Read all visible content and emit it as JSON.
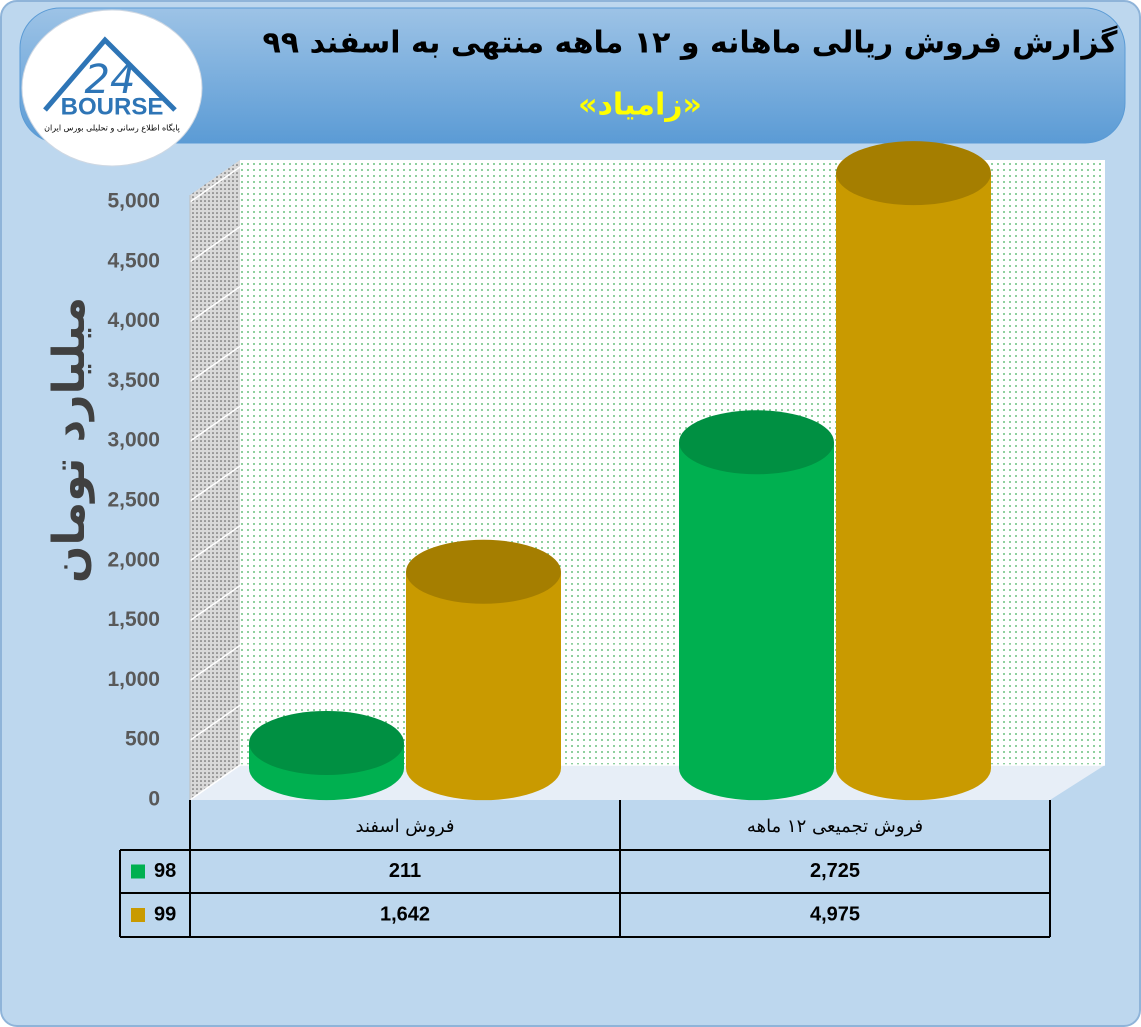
{
  "logo": {
    "number": "24",
    "name": "BOURSE",
    "tagline": "پایگاه اطلاع رسانی و تحلیلی بورس ایران"
  },
  "chart_data": {
    "type": "bar",
    "title": "گزارش فروش ریالی ماهانه و ۱۲ ماهه منتهی به اسفند ۹۹",
    "subtitle": "«زامیاد»",
    "y_label": "میلیارد تومان",
    "categories": [
      "فروش اسفند",
      "فروش تجمیعی ۱۲ ماهه"
    ],
    "series": [
      {
        "name": "98",
        "color": "#00b050",
        "values": [
          211,
          2725
        ],
        "value_labels": [
          "211",
          "2,725"
        ]
      },
      {
        "name": "99",
        "color": "#c99a00",
        "values": [
          1642,
          4975
        ],
        "value_labels": [
          "1,642",
          "4,975"
        ]
      }
    ],
    "ylim": [
      0,
      5000
    ],
    "yticks": [
      0,
      500,
      {
        "value": 1000,
        "label": "1,000"
      },
      {
        "value": 1500,
        "label": "1,500"
      },
      {
        "value": 2000,
        "label": "2,000"
      },
      {
        "value": 2500,
        "label": "2,500"
      },
      {
        "value": 3000,
        "label": "3,000"
      },
      {
        "value": 3500,
        "label": "3,500"
      },
      {
        "value": 4000,
        "label": "4,000"
      },
      {
        "value": 4500,
        "label": "4,500"
      },
      {
        "value": 5000,
        "label": "5,000"
      }
    ],
    "grid": true
  }
}
